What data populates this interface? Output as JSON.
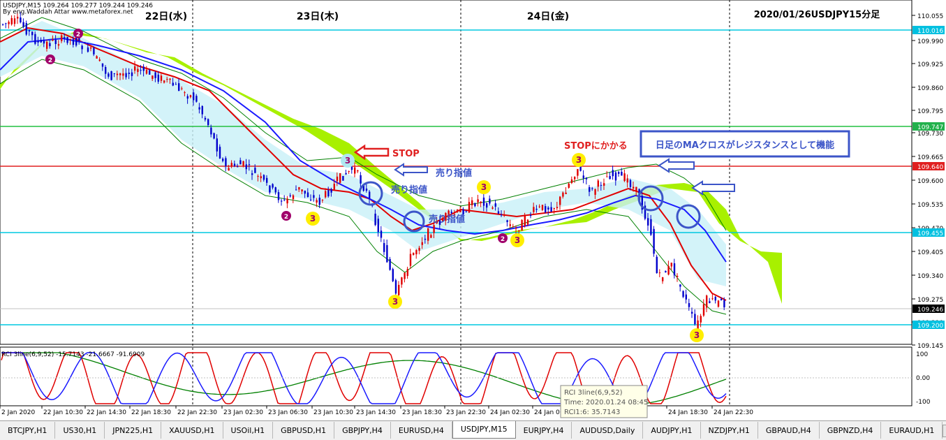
{
  "window": {
    "symbol_info": "USDJPY,M15  109.264 109.277 109.244 109.246",
    "author": "By eng.Waddah Attar  www.metaforex.net"
  },
  "day_labels": [
    "22日(水)",
    "23日(木)",
    "24日(金)"
  ],
  "chart_title": "2020/01/26USDJPY15分足",
  "price_axis": {
    "ticks": [
      "110.055",
      "109.990",
      "109.925",
      "109.860",
      "109.795",
      "109.730",
      "109.665",
      "109.600",
      "109.535",
      "109.470",
      "109.405",
      "109.340",
      "109.275",
      "109.210",
      "109.145"
    ],
    "badges": [
      {
        "value": "110.016",
        "color": "#00c0e0"
      },
      {
        "value": "109.747",
        "color": "#22b14c"
      },
      {
        "value": "109.640",
        "color": "#e02020"
      },
      {
        "value": "109.455",
        "color": "#00c0e0"
      },
      {
        "value": "109.246",
        "color": "#000000"
      },
      {
        "value": "109.200",
        "color": "#00c0e0"
      }
    ]
  },
  "time_axis": [
    "2 Jan 2020",
    "22 Jan 10:30",
    "22 Jan 14:30",
    "22 Jan 18:30",
    "22 Jan 22:30",
    "23 Jan 02:30",
    "23 Jan 06:30",
    "23 Jan 10:30",
    "23 Jan 14:30",
    "23 Jan 18:30",
    "23 Jan 22:30",
    "24 Jan 02:30",
    "24 Jan 06",
    "",
    "24 Jan 18:30",
    "24 Jan 22:30"
  ],
  "annotations": {
    "stop": "STOP",
    "sell_limit_1": "売り指値",
    "sell_limit_2": "売り指値",
    "sell_limit_3": "売り指値",
    "stop_hit": "STOPにかかる",
    "box_text": "日足のMAクロスがレジスタンスとして機能"
  },
  "wave_labels": [
    "2",
    "3",
    "2",
    "3",
    "3",
    "3",
    "2",
    "3",
    "3",
    "3"
  ],
  "indicator": {
    "header": "RCI 3line(6,9,52) -15.7143 -21.6667 -91.6909",
    "axis": [
      "100",
      "0.00",
      "-100"
    ]
  },
  "tooltip": {
    "line1": "RCI 3line(6,9,52)",
    "line2": "Time: 2020.01.24 08:45",
    "line3": "RCI1:6: 35.7143"
  },
  "tabs": [
    "BTCJPY,H1",
    "US30,H1",
    "JPN225,H1",
    "XAUUSD,H1",
    "USOil,H1",
    "GBPUSD,H1",
    "GBPJPY,H4",
    "EURUSD,H4",
    "USDJPY,M15",
    "EURJPY,H4",
    "AUDUSD,Daily",
    "AUDJPY,H1",
    "NZDJPY,H1",
    "GBPAUD,H4",
    "GBPNZD,H4",
    "EURAUD,H1"
  ],
  "active_tab": "USDJPY,M15",
  "colors": {
    "bull": "#e00000",
    "bear": "#0000cc",
    "cloud": "#a8f000",
    "ma_red": "#e00000",
    "ma_blue": "#1a1aff",
    "bb": "#008000",
    "annotation_blue": "#3c55c8",
    "annotation_red": "#e02020",
    "wave_yellow": "#ffee00",
    "wave_purple": "#a0006a"
  }
}
